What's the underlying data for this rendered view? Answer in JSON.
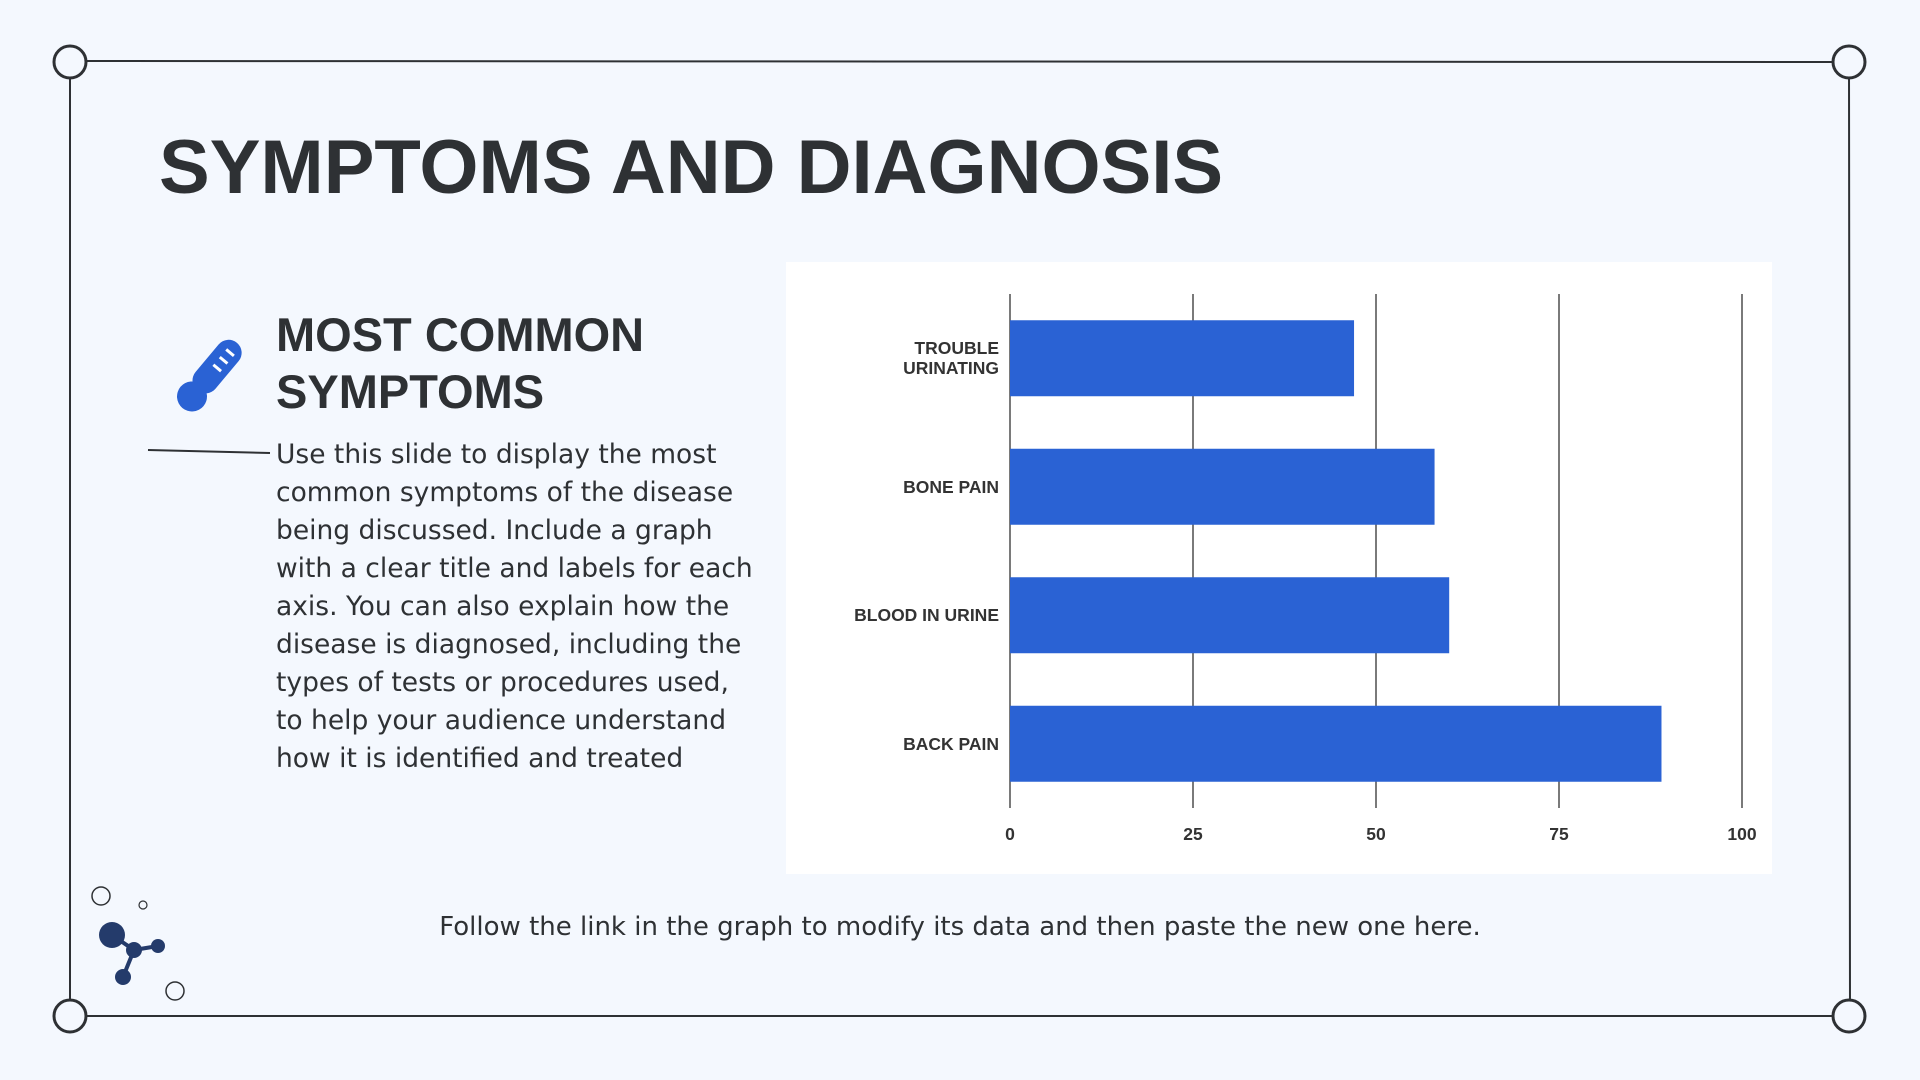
{
  "slide": {
    "title": "SYMPTOMS AND DIAGNOSIS",
    "heading": "MOST COMMON SYMPTOMS",
    "body": "Use this slide to display the most common symptoms of the disease being discussed. Include a graph with a clear title and labels for each axis. You can also explain how the disease is diagnosed, including the types of tests or procedures used, to help your audience understand how it is identified and treated",
    "note": "Follow the link in the graph to modify its data and then paste the new one here."
  },
  "chart_data": {
    "type": "hbar",
    "categories": [
      "TROUBLE URINATING",
      "BONE PAIN",
      "BLOOD IN URINE",
      "BACK PAIN"
    ],
    "values": [
      47,
      58,
      60,
      89
    ],
    "color": "#2a62d4",
    "xlim": [
      0,
      100
    ],
    "xticks": [
      0,
      25,
      50,
      75,
      100
    ],
    "grid": true
  }
}
